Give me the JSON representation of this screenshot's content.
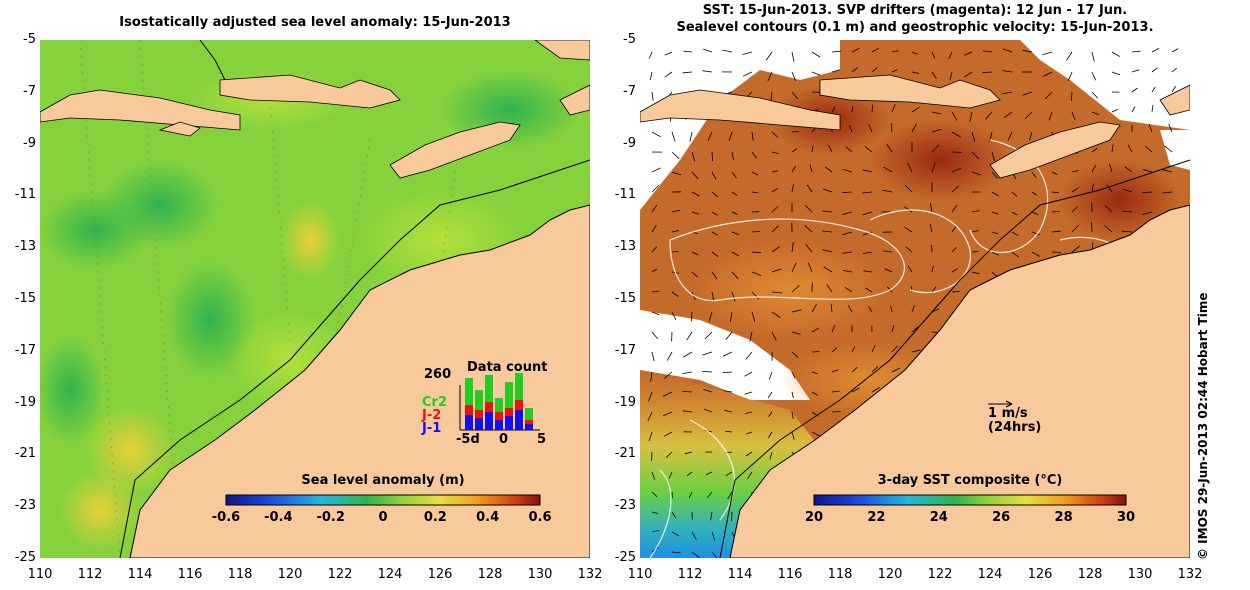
{
  "left_map": {
    "title": "Isostatically adjusted sea level anomaly: 15-Jun-2013",
    "colorbar_title": "Sea level anomaly (m)",
    "colorbar_ticks": [
      "-0.6",
      "-0.4",
      "-0.2",
      "0",
      "0.2",
      "0.4",
      "0.6"
    ],
    "y_ticks": [
      "-5",
      "-7",
      "-9",
      "-11",
      "-13",
      "-15",
      "-17",
      "-19",
      "-21",
      "-23",
      "-25"
    ],
    "x_ticks": [
      "110",
      "112",
      "114",
      "116",
      "118",
      "120",
      "122",
      "124",
      "126",
      "128",
      "130",
      "132"
    ],
    "data_count": {
      "title": "Data count",
      "max_label": "260",
      "satellites": [
        {
          "name": "Cr2",
          "color": "#22cc22"
        },
        {
          "name": "J-2",
          "color": "#ee1111"
        },
        {
          "name": "J-1",
          "color": "#1111ee"
        }
      ],
      "x_left": "-5d",
      "x_mid": "0",
      "x_right": "5"
    }
  },
  "right_map": {
    "title_line1": "SST: 15-Jun-2013. SVP drifters (magenta): 12 Jun - 17 Jun.",
    "title_line2": "Sealevel contours (0.1 m) and geostrophic velocity: 15-Jun-2013.",
    "colorbar_title": "3-day SST composite (°C)",
    "colorbar_ticks": [
      "20",
      "22",
      "24",
      "26",
      "28",
      "30"
    ],
    "y_ticks": [
      "-5",
      "-7",
      "-9",
      "-11",
      "-13",
      "-15",
      "-17",
      "-19",
      "-21",
      "-23",
      "-25"
    ],
    "x_ticks": [
      "110",
      "112",
      "114",
      "116",
      "118",
      "120",
      "122",
      "124",
      "126",
      "128",
      "130",
      "132"
    ],
    "velocity_scale": "1 m/s",
    "velocity_note": "(24hrs)"
  },
  "credit": "© IMOS 29-Jun-2013 02:44 Hobart Time",
  "colors": {
    "land": "#f7c99b",
    "sla_background": "#86d23d",
    "sst_background": "#c46a2a"
  }
}
